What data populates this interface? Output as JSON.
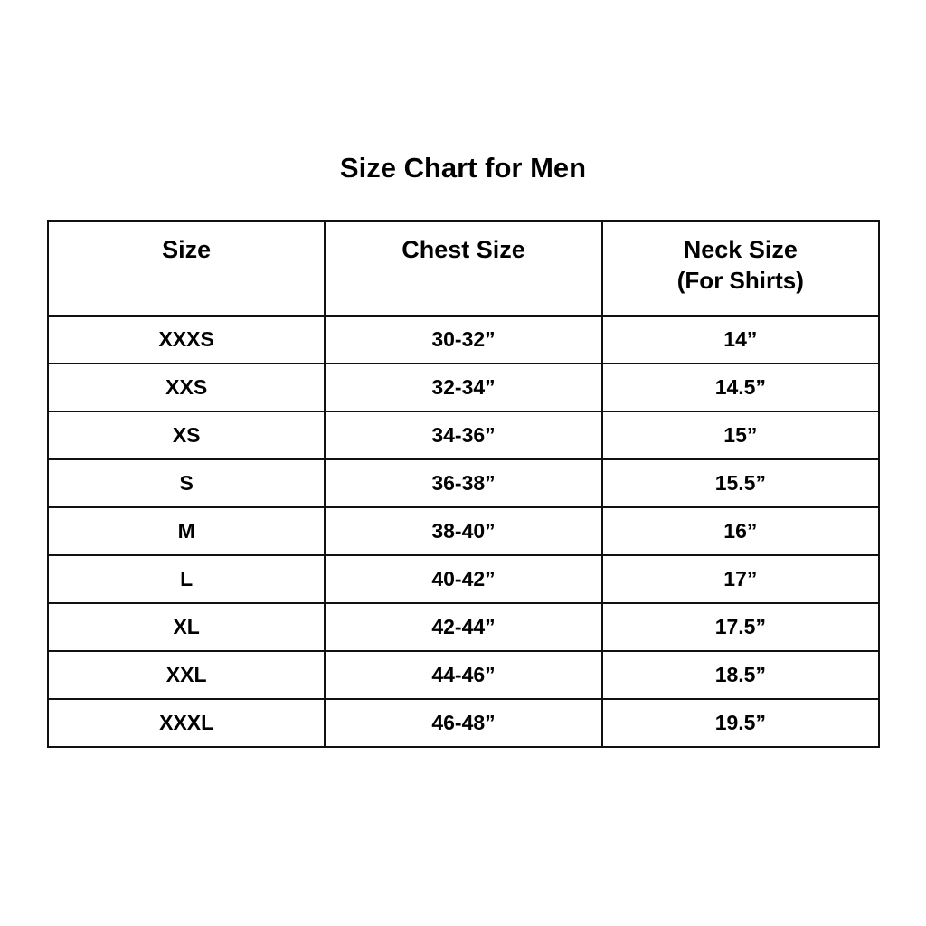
{
  "title": "Size Chart for Men",
  "table": {
    "headers": [
      {
        "label": "Size",
        "sub": ""
      },
      {
        "label": "Chest Size",
        "sub": ""
      },
      {
        "label": "Neck Size",
        "sub": "(For Shirts)"
      }
    ],
    "rows": [
      [
        "XXXS",
        "30-32”",
        "14”"
      ],
      [
        "XXS",
        "32-34”",
        "14.5”"
      ],
      [
        "XS",
        "34-36”",
        "15”"
      ],
      [
        "S",
        "36-38”",
        "15.5”"
      ],
      [
        "M",
        "38-40”",
        "16”"
      ],
      [
        "L",
        "40-42”",
        "17”"
      ],
      [
        "XL",
        "42-44”",
        "17.5”"
      ],
      [
        "XXL",
        "44-46”",
        "18.5”"
      ],
      [
        "XXXL",
        "46-48”",
        "19.5”"
      ]
    ]
  }
}
